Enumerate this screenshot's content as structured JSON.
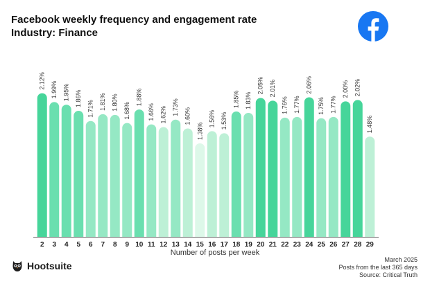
{
  "header": {
    "title": "Facebook weekly frequency and engagement rate",
    "subtitle": "Industry: Finance"
  },
  "icons": {
    "platform": "facebook-logo-icon",
    "brand": "hootsuite-owl-icon"
  },
  "brand": {
    "name": "Hootsuite"
  },
  "footer": {
    "date": "March 2025",
    "note": "Posts from the last 365 days",
    "source": "Source: Critical Truth"
  },
  "colors": {
    "facebook_blue": "#1877F2",
    "bar_dark": "#46D59A",
    "bar_mid": "#6ADFAF",
    "bar_light": "#95E8C4",
    "bar_pale": "#BDF0D6",
    "bar_palest": "#DDF8E9",
    "axis": "#666666"
  },
  "chart_data": {
    "type": "bar",
    "title": "Facebook weekly frequency and engagement rate",
    "subtitle": "Industry: Finance",
    "xlabel": "Number of posts per week",
    "ylabel": "",
    "ylim": [
      0,
      2.3
    ],
    "grid": false,
    "categories": [
      "2",
      "3",
      "4",
      "5",
      "6",
      "7",
      "8",
      "9",
      "10",
      "11",
      "12",
      "13",
      "14",
      "15",
      "16",
      "17",
      "18",
      "19",
      "20",
      "21",
      "22",
      "23",
      "24",
      "25",
      "26",
      "27",
      "28",
      "29"
    ],
    "values": [
      2.12,
      1.99,
      1.95,
      1.86,
      1.71,
      1.81,
      1.8,
      1.68,
      1.88,
      1.66,
      1.62,
      1.73,
      1.6,
      1.38,
      1.56,
      1.53,
      1.85,
      1.83,
      2.05,
      2.01,
      1.76,
      1.77,
      2.06,
      1.75,
      1.77,
      2.0,
      2.02,
      1.48
    ],
    "value_labels": [
      "2.12%",
      "1.99%",
      "1.95%",
      "1.86%",
      "1.71%",
      "1.81%",
      "1.80%",
      "1.68%",
      "1.88%",
      "1.66%",
      "1.62%",
      "1.73%",
      "1.60%",
      "1.38%",
      "1.56%",
      "1.53%",
      "1.85%",
      "1.83%",
      "2.05%",
      "2.01%",
      "1.76%",
      "1.77%",
      "2.06%",
      "1.75%",
      "1.77%",
      "2.00%",
      "2.02%",
      "1.48%"
    ]
  }
}
